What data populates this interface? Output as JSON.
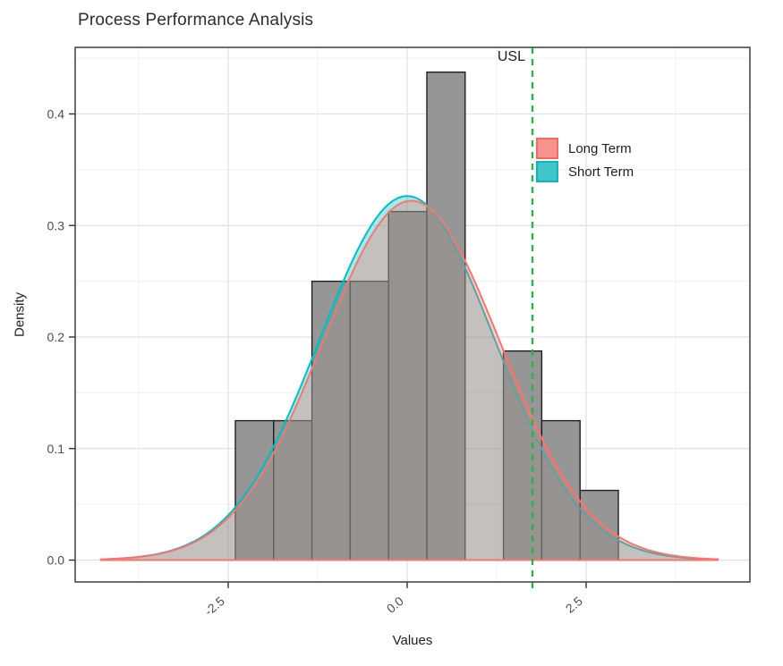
{
  "chart_data": {
    "type": "histogram",
    "title": "Process Performance Analysis",
    "xlabel": "Values",
    "ylabel": "Density",
    "xlim": [
      -4.6375,
      4.7875
    ],
    "ylim": [
      -0.0196,
      0.4597
    ],
    "grid": "on",
    "x_ticks": [
      {
        "v": -2.5,
        "label": "-2.5"
      },
      {
        "v": 0.0,
        "label": "0.0"
      },
      {
        "v": 2.5,
        "label": "2.5"
      }
    ],
    "y_ticks": [
      {
        "v": 0.0,
        "label": "0.0"
      },
      {
        "v": 0.1,
        "label": "0.1"
      },
      {
        "v": 0.2,
        "label": "0.2"
      },
      {
        "v": 0.3,
        "label": "0.3"
      },
      {
        "v": 0.4,
        "label": "0.4"
      }
    ],
    "histogram": {
      "bin_start": -2.4,
      "bin_width": 0.535,
      "densities": [
        0.125,
        0.125,
        0.25,
        0.25,
        0.3125,
        0.4375,
        0,
        0.1875,
        0.125,
        0.0625
      ],
      "fill": "#969696",
      "stroke": "#1f1f1f"
    },
    "series": [
      {
        "name": "Short Term",
        "color": "#00BFC4",
        "alpha": 0.35,
        "mean": 0.0,
        "sd": 1.222,
        "range": [
          -4.2,
          4.3
        ]
      },
      {
        "name": "Long Term",
        "color": "#F8766D",
        "alpha": 0.35,
        "mean": 0.06,
        "sd": 1.238,
        "range": [
          -4.28,
          4.34
        ]
      }
    ],
    "legend": [
      {
        "label": "Long Term",
        "fill": "#F5938C",
        "stroke": "#ED6A60"
      },
      {
        "label": "Short Term",
        "fill": "#3FC6CB",
        "stroke": "#14B3BC"
      }
    ],
    "legend_position": "inside-top-right",
    "usl": {
      "x": 1.75,
      "label": "USL",
      "color": "#28B24C"
    },
    "style": {
      "panel_border": "#4a4a4a",
      "grid_major": "#e2e2e2",
      "grid_minor": "#f0f0f0",
      "tick_color": "#333333",
      "tick_label_color": "#4d4d4d"
    }
  }
}
